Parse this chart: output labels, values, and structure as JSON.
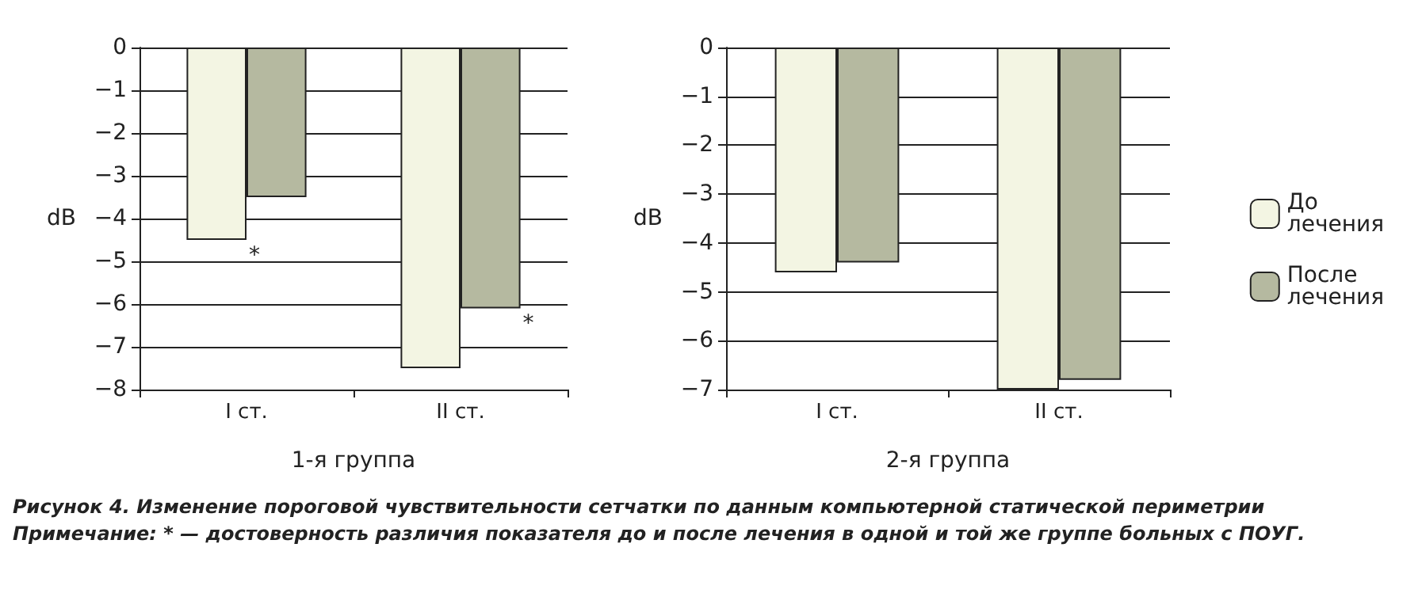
{
  "chart_data": [
    {
      "type": "bar",
      "xlabel": "1-я группа",
      "ylabel": "dB",
      "categories": [
        "I ст.",
        "II ст."
      ],
      "series": [
        {
          "color": "#f3f5e3",
          "values": [
            -4.5,
            -7.5
          ]
        },
        {
          "color": "#b5b9a0",
          "values": [
            -3.5,
            -6.1
          ]
        }
      ],
      "ylim": [
        -8,
        0
      ],
      "yticks": [
        0,
        -1,
        -2,
        -3,
        -4,
        -5,
        -6,
        -7,
        -8
      ],
      "grid": "y",
      "legend": false,
      "annotations": [
        {
          "text": "*",
          "x": "I ст.",
          "y": -4.5
        },
        {
          "text": "*",
          "x": "II ст.",
          "y": -6.1
        },
        "Рисунок 4. Изменение пороговой чувствительности сетчатки по данным компьютерной статической периметрии",
        "Примечание: * — достоверность различия показателя до и после лечения в одной и той же группе больных с ПОУГ."
      ]
    },
    {
      "type": "bar",
      "xlabel": "2-я группа",
      "ylabel": "dB",
      "categories": [
        "I ст.",
        "II ст."
      ],
      "series": [
        {
          "name": "До лечения",
          "color": "#f3f5e3",
          "values": [
            -4.6,
            -7.0
          ]
        },
        {
          "name": "После лечения",
          "color": "#b5b9a0",
          "values": [
            -4.4,
            -6.8
          ]
        }
      ],
      "ylim": [
        -7,
        0
      ],
      "yticks": [
        0,
        -1,
        -2,
        -3,
        -4,
        -5,
        -6,
        -7
      ],
      "grid": "y",
      "legend": "right"
    }
  ]
}
